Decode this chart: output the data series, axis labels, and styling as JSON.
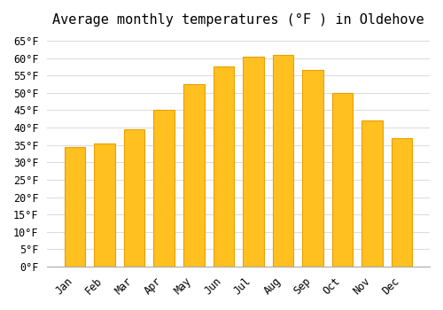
{
  "title": "Average monthly temperatures (°F ) in Oldehove",
  "months": [
    "Jan",
    "Feb",
    "Mar",
    "Apr",
    "May",
    "Jun",
    "Jul",
    "Aug",
    "Sep",
    "Oct",
    "Nov",
    "Dec"
  ],
  "values": [
    34.5,
    35.5,
    39.5,
    45.0,
    52.5,
    57.5,
    60.5,
    61.0,
    56.5,
    50.0,
    42.0,
    37.0
  ],
  "bar_color": "#FFC020",
  "bar_edge_color": "#E8A000",
  "background_color": "#FFFFFF",
  "grid_color": "#DDDDDD",
  "title_fontsize": 11,
  "tick_fontsize": 8.5,
  "ylim": [
    0,
    67
  ],
  "yticks": [
    0,
    5,
    10,
    15,
    20,
    25,
    30,
    35,
    40,
    45,
    50,
    55,
    60,
    65
  ]
}
